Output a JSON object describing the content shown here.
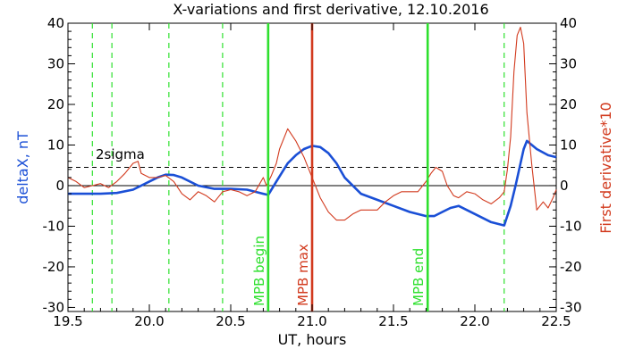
{
  "chart_data": {
    "type": "line",
    "title": "X-variations and first derivative, 12.10.2016",
    "xlabel": "UT, hours",
    "ylabel_left": "deltaX, nT",
    "ylabel_right": "First derivative*10",
    "xlim": [
      19.5,
      22.5
    ],
    "ylim": [
      -31,
      40
    ],
    "xticks": [
      "19.5",
      "20.0",
      "20.5",
      "21.0",
      "21.5",
      "22.0",
      "22.5"
    ],
    "yticks": [
      "40",
      "30",
      "20",
      "10",
      "0",
      "-10",
      "-20",
      "-30"
    ],
    "threshold": {
      "label": "2sigma",
      "value": 4.5
    },
    "colors": {
      "deltaX": "#1a4fd6",
      "derivative": "#d23a1e",
      "green": "#2ee02e",
      "max": "#d23a1e"
    },
    "markers": [
      {
        "x": 20.73,
        "label": "MPB begin",
        "color": "#2ee02e"
      },
      {
        "x": 21.0,
        "label": "MPB max",
        "color": "#d23a1e"
      },
      {
        "x": 21.71,
        "label": "MPB end",
        "color": "#2ee02e"
      }
    ],
    "dashed_lines": [
      19.65,
      19.77,
      20.12,
      20.45,
      22.18
    ],
    "series": [
      {
        "name": "deltaX, nT",
        "color": "#1a4fd6",
        "x": [
          19.5,
          19.6,
          19.7,
          19.8,
          19.9,
          20.0,
          20.05,
          20.1,
          20.15,
          20.2,
          20.3,
          20.4,
          20.5,
          20.6,
          20.7,
          20.73,
          20.78,
          20.85,
          20.9,
          20.95,
          21.0,
          21.05,
          21.1,
          21.15,
          21.2,
          21.3,
          21.4,
          21.5,
          21.6,
          21.7,
          21.75,
          21.8,
          21.85,
          21.9,
          22.0,
          22.1,
          22.18,
          22.22,
          22.25,
          22.3,
          22.32,
          22.38,
          22.45,
          22.5
        ],
        "y": [
          -2,
          -2,
          -2,
          -1.8,
          -1,
          1,
          2,
          2.7,
          2.6,
          2,
          0,
          -0.8,
          -0.8,
          -1,
          -2,
          -2.3,
          1,
          5.5,
          7.5,
          9,
          9.8,
          9.5,
          8,
          5.5,
          2,
          -2,
          -3.5,
          -5,
          -6.5,
          -7.5,
          -7.5,
          -6.5,
          -5.5,
          -5,
          -7,
          -9,
          -9.8,
          -5,
          0,
          9,
          11,
          9,
          7.5,
          7
        ]
      },
      {
        "name": "First derivative*10",
        "color": "#d23a1e",
        "x": [
          19.5,
          19.55,
          19.6,
          19.65,
          19.7,
          19.75,
          19.8,
          19.85,
          19.9,
          19.93,
          19.95,
          20.0,
          20.05,
          20.1,
          20.15,
          20.2,
          20.25,
          20.3,
          20.35,
          20.4,
          20.45,
          20.5,
          20.55,
          20.6,
          20.65,
          20.7,
          20.72,
          20.75,
          20.78,
          20.8,
          20.85,
          20.9,
          20.95,
          21.0,
          21.05,
          21.1,
          21.15,
          21.2,
          21.25,
          21.3,
          21.35,
          21.4,
          21.45,
          21.5,
          21.55,
          21.6,
          21.65,
          21.7,
          21.73,
          21.76,
          21.8,
          21.83,
          21.87,
          21.9,
          21.95,
          22.0,
          22.05,
          22.1,
          22.15,
          22.18,
          22.2,
          22.22,
          22.24,
          22.26,
          22.28,
          22.3,
          22.32,
          22.35,
          22.38,
          22.42,
          22.45,
          22.48,
          22.5
        ],
        "y": [
          2,
          1,
          -0.5,
          0,
          0.5,
          -0.5,
          1,
          3,
          5.5,
          6,
          3,
          2,
          2,
          2.5,
          1,
          -2,
          -3.5,
          -1.5,
          -2.5,
          -4,
          -1.5,
          -1,
          -1.5,
          -2.5,
          -1.5,
          2,
          0,
          2.5,
          5.5,
          9,
          14,
          11,
          7,
          2,
          -3,
          -6.5,
          -8.5,
          -8.5,
          -7,
          -6,
          -6,
          -6,
          -4,
          -2.5,
          -1.5,
          -1.5,
          -1.5,
          1,
          3,
          4.5,
          3.5,
          0,
          -2.5,
          -3,
          -1.5,
          -2,
          -3.5,
          -4.5,
          -3,
          -1.5,
          4,
          12,
          28,
          37,
          39,
          35,
          18,
          5,
          -6,
          -4,
          -5.5,
          -3,
          -1
        ]
      }
    ]
  }
}
